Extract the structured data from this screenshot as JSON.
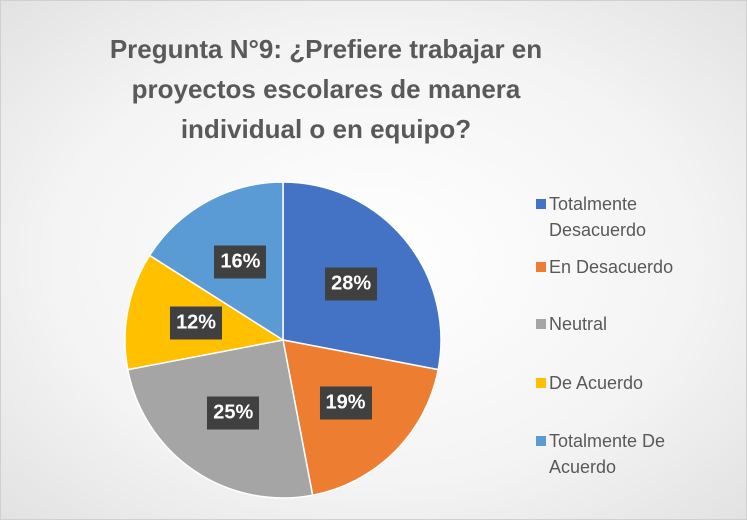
{
  "chart_data": {
    "type": "pie",
    "title": "Pregunta N°9: ¿Prefiere trabajar en proyectos escolares de manera individual o en equipo?",
    "categories": [
      "Totalmente Desacuerdo",
      "En Desacuerdo",
      "Neutral",
      "De Acuerdo",
      "Totalmente De Acuerdo"
    ],
    "values": [
      28,
      19,
      25,
      12,
      16
    ],
    "value_labels": [
      "28%",
      "19%",
      "25%",
      "12%",
      "16%"
    ],
    "colors": [
      "#4472c4",
      "#ed7d31",
      "#a5a5a5",
      "#ffc000",
      "#5b9bd5"
    ],
    "legend": "right"
  }
}
